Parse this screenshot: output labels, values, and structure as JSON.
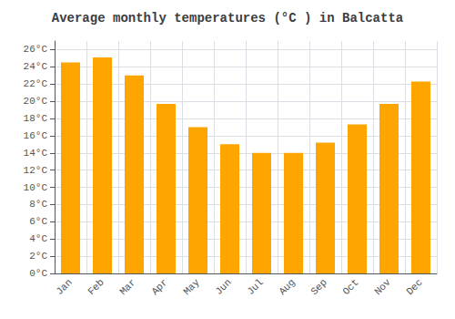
{
  "chart_data": {
    "type": "bar",
    "title": "Average monthly temperatures (°C ) in Balcatta",
    "categories": [
      "Jan",
      "Feb",
      "Mar",
      "Apr",
      "May",
      "Jun",
      "Jul",
      "Aug",
      "Sep",
      "Oct",
      "Nov",
      "Dec"
    ],
    "values": [
      24.5,
      25.1,
      23.0,
      19.7,
      17.0,
      15.0,
      14.0,
      14.0,
      15.2,
      17.3,
      19.7,
      22.3
    ],
    "color": "#FFA500",
    "ylim": [
      0,
      27
    ],
    "yticks": [
      {
        "value": 0,
        "label": "0°C"
      },
      {
        "value": 2,
        "label": "2°C"
      },
      {
        "value": 4,
        "label": "4°C"
      },
      {
        "value": 6,
        "label": "6°C"
      },
      {
        "value": 8,
        "label": "8°C"
      },
      {
        "value": 10,
        "label": "10°C"
      },
      {
        "value": 12,
        "label": "12°C"
      },
      {
        "value": 14,
        "label": "14°C"
      },
      {
        "value": 16,
        "label": "16°C"
      },
      {
        "value": 18,
        "label": "18°C"
      },
      {
        "value": 20,
        "label": "20°C"
      },
      {
        "value": 22,
        "label": "22°C"
      },
      {
        "value": 24,
        "label": "24°C"
      },
      {
        "value": 26,
        "label": "26°C"
      }
    ],
    "grid": true
  }
}
